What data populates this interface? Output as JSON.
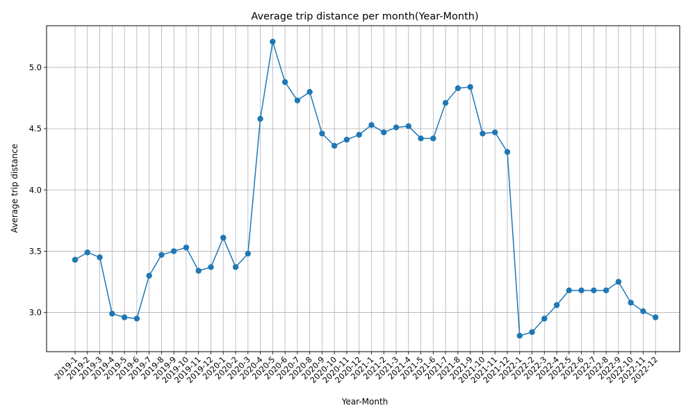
{
  "chart_data": {
    "type": "line",
    "title": "Average trip distance per month(Year-Month)",
    "xlabel": "Year-Month",
    "ylabel": "Average trip distance",
    "ylim": [
      2.68,
      5.34
    ],
    "yticks": [
      "3.0",
      "3.5",
      "4.0",
      "4.5",
      "5.0"
    ],
    "grid": true,
    "line_color": "#1f77b4",
    "categories": [
      "2019-1",
      "2019-2",
      "2019-3",
      "2019-4",
      "2019-5",
      "2019-6",
      "2019-7",
      "2019-8",
      "2019-9",
      "2019-10",
      "2019-11",
      "2019-12",
      "2020-1",
      "2020-2",
      "2020-3",
      "2020-4",
      "2020-5",
      "2020-6",
      "2020-7",
      "2020-8",
      "2020-9",
      "2020-10",
      "2020-11",
      "2020-12",
      "2021-1",
      "2021-2",
      "2021-3",
      "2021-4",
      "2021-5",
      "2021-6",
      "2021-7",
      "2021-8",
      "2021-9",
      "2021-10",
      "2021-11",
      "2021-12",
      "2022-1",
      "2022-2",
      "2022-3",
      "2022-4",
      "2022-5",
      "2022-6",
      "2022-7",
      "2022-8",
      "2022-9",
      "2022-10",
      "2022-11",
      "2022-12"
    ],
    "values": [
      3.43,
      3.49,
      3.45,
      2.99,
      2.96,
      2.95,
      3.3,
      3.47,
      3.5,
      3.53,
      3.34,
      3.37,
      3.61,
      3.37,
      3.48,
      4.58,
      5.21,
      4.88,
      4.73,
      4.8,
      4.46,
      4.36,
      4.41,
      4.45,
      4.53,
      4.47,
      4.51,
      4.52,
      4.42,
      4.42,
      4.71,
      4.83,
      4.84,
      4.46,
      4.47,
      4.31,
      2.81,
      2.84,
      2.95,
      3.06,
      3.18,
      3.18,
      3.18,
      3.18,
      3.25,
      3.08,
      3.01,
      2.96
    ]
  }
}
